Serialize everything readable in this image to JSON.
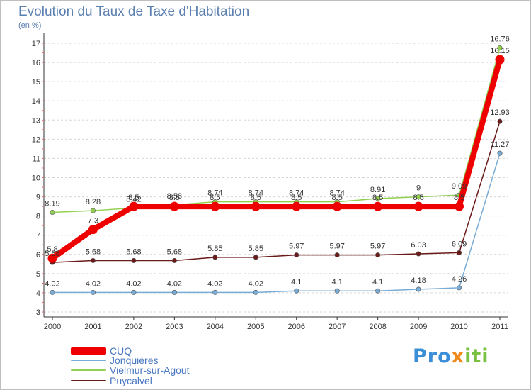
{
  "chart_data": {
    "type": "line",
    "title": "Evolution du Taux de Taxe d'Habitation",
    "unit_label": "(en %)",
    "xlabel": "",
    "ylabel": "",
    "ylim": [
      3,
      17
    ],
    "yticks": [
      "3",
      "4",
      "5",
      "6",
      "7",
      "8",
      "9",
      "10",
      "11",
      "12",
      "13",
      "14",
      "15",
      "16",
      "17"
    ],
    "categories": [
      "2000",
      "2001",
      "2002",
      "2003",
      "2004",
      "2005",
      "2006",
      "2007",
      "2008",
      "2009",
      "2010",
      "2011"
    ],
    "grid": "horizontal dashed",
    "series": [
      {
        "name": "CUQ",
        "color": "#ee0000",
        "values": [
          5.8,
          7.3,
          8.5,
          8.5,
          8.5,
          8.5,
          8.5,
          8.5,
          8.5,
          8.5,
          8.5,
          16.15
        ],
        "labels": [
          "5.8",
          "7.3",
          "8.5",
          "8.5",
          "8.5",
          "8.5",
          "8.5",
          "8.5",
          "8.5",
          "8.5",
          "8.5",
          "16.15"
        ]
      },
      {
        "name": "Jonquières",
        "color": "#78acd6",
        "values": [
          4.02,
          4.02,
          4.02,
          4.02,
          4.02,
          4.02,
          4.1,
          4.1,
          4.1,
          4.18,
          4.26,
          11.27
        ],
        "labels": [
          "4.02",
          "4.02",
          "4.02",
          "4.02",
          "4.02",
          "4.02",
          "4.1",
          "4.1",
          "4.1",
          "4.18",
          "4.26",
          "11.27"
        ]
      },
      {
        "name": "Vielmur-sur-Agout",
        "color": "#92d050",
        "values": [
          8.19,
          8.28,
          8.42,
          8.58,
          8.74,
          8.74,
          8.74,
          8.74,
          8.91,
          9.0,
          9.09,
          16.76
        ],
        "labels": [
          "8.19",
          "8.28",
          "8.42",
          "8.58",
          "8.74",
          "8.74",
          "8.74",
          "8.74",
          "8.91",
          "9",
          "9.09",
          "16.76"
        ]
      },
      {
        "name": "Puycalvel",
        "color": "#6b1a1a",
        "values": [
          5.58,
          5.68,
          5.68,
          5.68,
          5.85,
          5.85,
          5.97,
          5.97,
          5.97,
          6.03,
          6.09,
          12.93
        ],
        "labels": [
          "5.58",
          "5.68",
          "5.68",
          "5.68",
          "5.85",
          "5.85",
          "5.97",
          "5.97",
          "5.97",
          "6.03",
          "6.09",
          "12.93"
        ]
      }
    ]
  },
  "legend": {
    "cuq": "CUQ",
    "jonquieres": "Jonquières",
    "vielmur": "Vielmur-sur-Agout",
    "puycalvel": "Puycalvel"
  },
  "logo": {
    "p1": "Pro",
    "x": "x",
    "p2": "iti"
  },
  "colors": {
    "title": "#5b7fb0",
    "legend_text": "#4a78c2",
    "axis": "#333333"
  }
}
